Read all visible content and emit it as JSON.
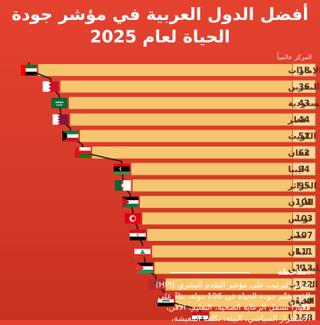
{
  "header": {
    "title_line1": "أفضل الدول العربية في مؤشر جودة",
    "title_line2": "الحياة لعام 2025",
    "rank_column_label": "المركز عالمياً"
  },
  "note": {
    "heading": "ملاحظة:",
    "lines": [
      "يعتمد الترتيب على مؤشر التقدم البشري (HPI)",
      "الذي يقيّم جودة الحياة في 196 دولة، بناءً على 31",
      "معياراً تشمل الرعاية الصحية، التعليم، الأمن،",
      "الاستقرار السياسي، البيئة، تكلفة المعيشة،"
    ]
  },
  "colors": {
    "background": "#d83c2a",
    "bar": "#f6c56f",
    "rank_box": "#f8d99a",
    "leader_line": "#1a1a1a",
    "text": "#5a2d1a"
  },
  "chart_data": {
    "type": "bar",
    "orientation": "horizontal",
    "series": [
      {
        "name": "المركز عالمياً",
        "values": [
          18,
          36,
          43,
          44,
          52,
          62,
          94,
          95,
          101,
          103,
          107,
          111,
          113,
          122,
          130,
          158
        ]
      }
    ],
    "categories": [
      "الإمارات",
      "البحرين",
      "السعودية",
      "قطر",
      "الكويت",
      "عمان",
      "ليبيا",
      "الجزائر",
      "الأردن",
      "تونس",
      "مصر",
      "لبنان",
      "فلسطين",
      "المغرب",
      "العراق",
      "سوريا"
    ],
    "flags": [
      "uae-flag",
      "bahrain-flag",
      "saudi-flag",
      "qatar-flag",
      "kuwait-flag",
      "oman-flag",
      "libya-flag",
      "algeria-flag",
      "jordan-flag",
      "tunisia-flag",
      "egypt-flag",
      "lebanon-flag",
      "palestine-flag",
      "morocco-flag",
      "iraq-flag",
      "syria-flag"
    ],
    "bar_scale": "bar length decreases as the world rank number increases"
  }
}
